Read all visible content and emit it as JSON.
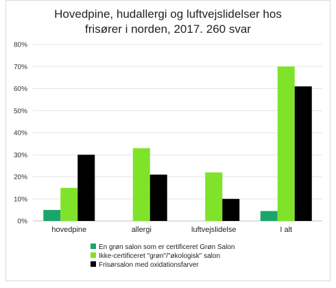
{
  "chart_data": {
    "type": "bar",
    "title_lines": [
      "Hovedpine, hudallergi og luftvejslidelser hos",
      "frisører i norden, 2017. 260 svar"
    ],
    "categories": [
      "hovedpine",
      "allergi",
      "luftvejslidelse",
      "I alt"
    ],
    "series": [
      {
        "name": "En grøn salon som er certificeret Grøn Salon",
        "color": "#1aa56b",
        "values": [
          5,
          0,
          0,
          4.5
        ]
      },
      {
        "name": "Ikke-certificeret \"grøn\"/\"økologisk\" salon",
        "color": "#7fe32a",
        "values": [
          15,
          33,
          22,
          70
        ]
      },
      {
        "name": "Frisørsalon med oxidationsfarver",
        "color": "#000000",
        "values": [
          30,
          21,
          10,
          61
        ]
      }
    ],
    "yticks": [
      "0%",
      "10%",
      "20%",
      "30%",
      "40%",
      "50%",
      "60%",
      "70%",
      "80%"
    ],
    "ylim": [
      0,
      80
    ],
    "grid": true,
    "legend_position": "bottom-left"
  }
}
